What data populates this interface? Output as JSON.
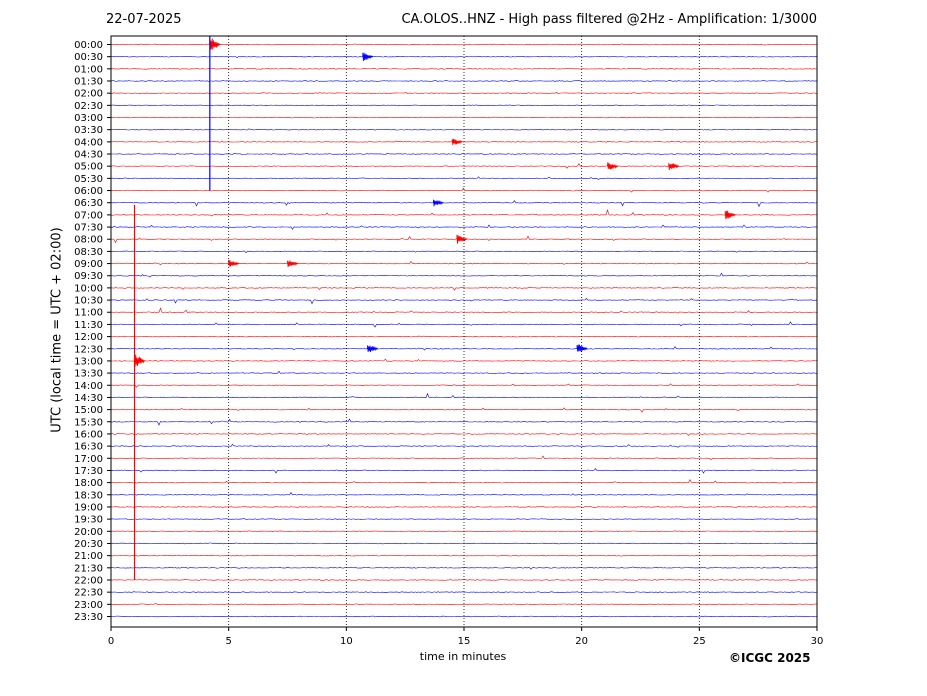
{
  "header": {
    "date": "22-07-2025",
    "title": "CA.OLOS..HNZ - High pass filtered @2Hz - Amplification: 1/3000"
  },
  "footer": {
    "copyright": "©ICGC 2025"
  },
  "chart_data": {
    "type": "line",
    "title": "CA.OLOS..HNZ - High pass filtered @2Hz - Amplification: 1/3000",
    "xlabel": "time in minutes",
    "ylabel": "UTC (local time = UTC + 02:00)",
    "xlim": [
      0,
      30
    ],
    "xticks": [
      0,
      5,
      10,
      15,
      20,
      25,
      30
    ],
    "rows": [
      "00:00",
      "00:30",
      "01:00",
      "01:30",
      "02:00",
      "02:30",
      "03:00",
      "03:30",
      "04:00",
      "04:30",
      "05:00",
      "05:30",
      "06:00",
      "06:30",
      "07:00",
      "07:30",
      "08:00",
      "08:30",
      "09:00",
      "09:30",
      "10:00",
      "10:30",
      "11:00",
      "11:30",
      "12:00",
      "12:30",
      "13:00",
      "13:30",
      "14:00",
      "14:30",
      "15:00",
      "15:30",
      "16:00",
      "16:30",
      "17:00",
      "17:30",
      "18:00",
      "18:30",
      "19:00",
      "19:30",
      "20:00",
      "20:30",
      "21:00",
      "21:30",
      "22:00",
      "22:30",
      "23:00",
      "23:30"
    ],
    "activity": [
      0.05,
      0.1,
      0.05,
      0.05,
      0.05,
      0.1,
      0.15,
      0.1,
      0.3,
      0.5,
      0.6,
      0.6,
      0.7,
      0.9,
      1.0,
      1.0,
      1.0,
      0.9,
      1.0,
      0.8,
      0.6,
      0.8,
      0.8,
      0.7,
      0.8,
      0.9,
      0.5,
      0.4,
      0.6,
      0.7,
      0.7,
      0.8,
      1.0,
      0.8,
      0.6,
      0.7,
      0.5,
      0.4,
      0.4,
      0.3,
      0.2,
      0.3,
      0.2,
      0.3,
      0.1,
      0.05,
      0.05,
      0.05
    ],
    "events": [
      {
        "row": 0,
        "minute": 4.2,
        "amp": 1.0
      },
      {
        "row": 1,
        "minute": 10.7,
        "amp": 0.6
      },
      {
        "row": 8,
        "minute": 14.5,
        "amp": 0.5
      },
      {
        "row": 10,
        "minute": 21.1,
        "amp": 0.6
      },
      {
        "row": 10,
        "minute": 23.7,
        "amp": 0.6
      },
      {
        "row": 13,
        "minute": 13.7,
        "amp": 0.5
      },
      {
        "row": 14,
        "minute": 26.1,
        "amp": 0.7
      },
      {
        "row": 16,
        "minute": 14.7,
        "amp": 0.6
      },
      {
        "row": 18,
        "minute": 7.5,
        "amp": 0.6
      },
      {
        "row": 18,
        "minute": 5.0,
        "amp": 0.5
      },
      {
        "row": 25,
        "minute": 19.8,
        "amp": 0.7
      },
      {
        "row": 25,
        "minute": 10.9,
        "amp": 0.6
      },
      {
        "row": 26,
        "minute": 1.0,
        "amp": 1.0
      }
    ],
    "series": [
      {
        "color": "#ff0000"
      },
      {
        "color": "#0000ff"
      }
    ],
    "grid": true
  }
}
